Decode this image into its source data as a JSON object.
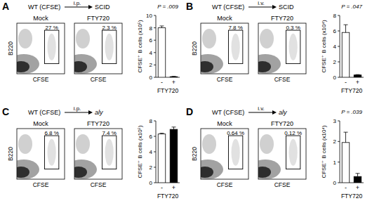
{
  "chart_data": [
    {
      "type": "bar",
      "categories": [
        "-",
        "+"
      ],
      "values": [
        8.0,
        0.1
      ],
      "errors": [
        0.3,
        0.05
      ],
      "colors": [
        "#ffffff",
        "#000000"
      ],
      "y_label": "CFSE⁺ B cells (x10⁵)",
      "x_label": "FTY720",
      "ylim": [
        0,
        10
      ],
      "yticks": [
        0,
        2,
        4,
        6,
        8,
        10
      ],
      "annotations": [
        "P = .009"
      ]
    },
    {
      "type": "bar",
      "categories": [
        "-",
        "+"
      ],
      "values": [
        5.8,
        0.3
      ],
      "errors": [
        1.0,
        0.05
      ],
      "colors": [
        "#ffffff",
        "#000000"
      ],
      "y_label": "CFSE⁺ B cells (x10⁴)",
      "x_label": "FTY720",
      "ylim": [
        0,
        8
      ],
      "yticks": [
        0,
        2,
        4,
        6,
        8
      ],
      "annotations": [
        "P = .047"
      ]
    },
    {
      "type": "bar",
      "categories": [
        "-",
        "+"
      ],
      "values": [
        6.3,
        6.9
      ],
      "errors": [
        0.1,
        0.3
      ],
      "colors": [
        "#ffffff",
        "#000000"
      ],
      "y_label": "CFSE⁺ B cells (x10⁵)",
      "x_label": "FTY720",
      "ylim": [
        0,
        8
      ],
      "yticks": [
        0,
        2,
        4,
        6,
        8
      ],
      "annotations": []
    },
    {
      "type": "bar",
      "categories": [
        "-",
        "+"
      ],
      "values": [
        1.95,
        0.3
      ],
      "errors": [
        0.5,
        0.15
      ],
      "colors": [
        "#ffffff",
        "#000000"
      ],
      "y_label": "CFSE⁺ B cells (x10⁴)",
      "x_label": "FTY720",
      "ylim": [
        0,
        3
      ],
      "yticks": [
        0,
        1,
        2,
        3
      ],
      "annotations": [
        "P = .039"
      ]
    }
  ],
  "panels": [
    {
      "label": "A",
      "donor": "WT (CFSE)",
      "route": "i.p.",
      "recipient": "SCID",
      "y_label": "B220",
      "x_label": "CFSE",
      "plots": [
        {
          "condition": "Mock",
          "gate_percent": "27 %"
        },
        {
          "condition": "FTY720",
          "gate_percent": "2.3 %"
        }
      ]
    },
    {
      "label": "B",
      "donor": "WT (CFSE)",
      "route": "i.v.",
      "recipient": "SCID",
      "y_label": "B220",
      "x_label": "CFSE",
      "plots": [
        {
          "condition": "Mock",
          "gate_percent": "7.8 %"
        },
        {
          "condition": "FTY720",
          "gate_percent": "0.3 %"
        }
      ]
    },
    {
      "label": "C",
      "donor": "WT (CFSE)",
      "route": "i.p.",
      "recipient": "aly",
      "y_label": "B220",
      "x_label": "CFSE",
      "plots": [
        {
          "condition": "Mock",
          "gate_percent": "6.8 %"
        },
        {
          "condition": "FTY720",
          "gate_percent": "7.4 %"
        }
      ]
    },
    {
      "label": "D",
      "donor": "WT (CFSE)",
      "route": "i.v.",
      "recipient": "aly",
      "y_label": "B220",
      "x_label": "CFSE",
      "plots": [
        {
          "condition": "Mock",
          "gate_percent": "0.64 %"
        },
        {
          "condition": "FTY720",
          "gate_percent": "0.12 %"
        }
      ]
    }
  ]
}
